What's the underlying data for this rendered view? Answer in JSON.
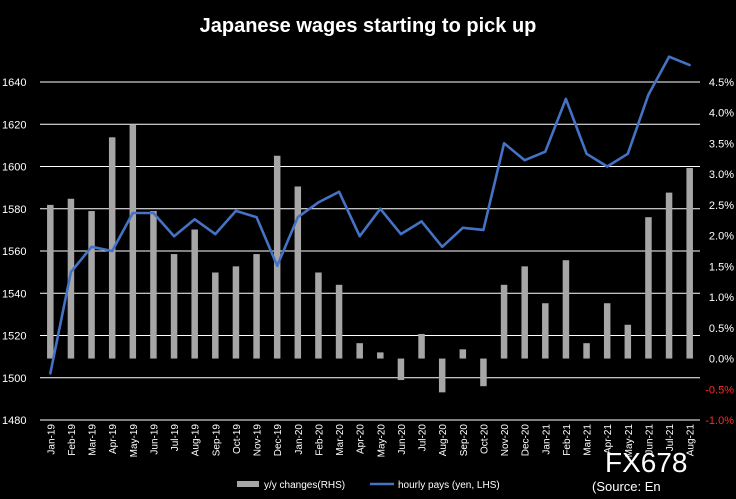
{
  "chart_data": {
    "type": "bar+line",
    "title": "Japanese wages starting to pick up",
    "categories": [
      "Jan-19",
      "Feb-19",
      "Mar-19",
      "Apr-19",
      "May-19",
      "Jun-19",
      "Jul-19",
      "Aug-19",
      "Sep-19",
      "Oct-19",
      "Nov-19",
      "Dec-19",
      "Jan-20",
      "Feb-20",
      "Mar-20",
      "Apr-20",
      "May-20",
      "Jun-20",
      "Jul-20",
      "Aug-20",
      "Sep-20",
      "Oct-20",
      "Nov-20",
      "Dec-20",
      "Jan-21",
      "Feb-21",
      "Mar-21",
      "Apr-21",
      "May-21",
      "Jun-21",
      "Jul-21",
      "Aug-21"
    ],
    "series": [
      {
        "name": "y/y changes(RHS)",
        "type": "bar",
        "axis": "right",
        "color": "#a6a6a6",
        "values": [
          2.5,
          2.6,
          2.4,
          3.6,
          3.8,
          2.4,
          1.7,
          2.1,
          1.4,
          1.5,
          1.7,
          3.3,
          2.8,
          1.4,
          1.2,
          0.25,
          0.1,
          -0.35,
          0.4,
          -0.55,
          0.15,
          -0.45,
          1.2,
          1.5,
          0.9,
          1.6,
          0.25,
          0.9,
          0.55,
          2.3,
          2.7,
          3.1
        ]
      },
      {
        "name": "hourly pays (yen, LHS)",
        "type": "line",
        "axis": "left",
        "color": "#4472c4",
        "values": [
          1502,
          1550,
          1562,
          1560,
          1578,
          1578,
          1567,
          1575,
          1568,
          1579,
          1576,
          1553,
          1576,
          1583,
          1588,
          1567,
          1580,
          1568,
          1574,
          1562,
          1571,
          1570,
          1611,
          1603,
          1607,
          1632,
          1606,
          1600,
          1606,
          1634,
          1652,
          1648
        ]
      }
    ],
    "y_left": {
      "ticks": [
        "1480",
        "1500",
        "1520",
        "1540",
        "1560",
        "1580",
        "1600",
        "1620",
        "1640"
      ],
      "min": 1480,
      "max": 1640
    },
    "y_right": {
      "ticks": [
        "-1.0%",
        "-0.5%",
        "0.0%",
        "0.5%",
        "1.0%",
        "1.5%",
        "2.0%",
        "2.5%",
        "3.0%",
        "3.5%",
        "4.0%",
        "4.5%"
      ],
      "min": -1.0,
      "max": 4.5
    },
    "grid": true,
    "legend": "bottom"
  },
  "watermark": {
    "brand": "FX678",
    "source": "(Source: En"
  }
}
